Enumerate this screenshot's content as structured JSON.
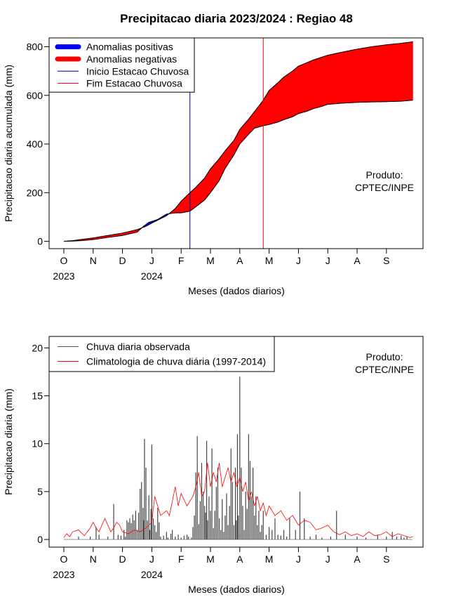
{
  "chart_data": [
    {
      "type": "area",
      "title": "Precipitacao diaria 2023/2024 : Regiao 48",
      "xlabel": "Meses (dados diarios)",
      "ylabel": "Precipitacao diaria acumulada (mm)",
      "x_unit": "month",
      "xlim": [
        "2023-10-01",
        "2024-09-30"
      ],
      "ylim": [
        0,
        830
      ],
      "yticks": [
        0,
        200,
        400,
        600,
        800
      ],
      "x_ticks": [
        "O",
        "N",
        "D",
        "J",
        "F",
        "M",
        "A",
        "M",
        "J",
        "J",
        "A",
        "S"
      ],
      "x_years": [
        {
          "month_index": 0,
          "label": "2023"
        },
        {
          "month_index": 3,
          "label": "2024"
        }
      ],
      "legend": {
        "placement": "top-left",
        "entries": [
          {
            "label": "Anomalias positivas",
            "color": "#0000ff",
            "style": "thick"
          },
          {
            "label": "Anomalias negativas",
            "color": "#ff0000",
            "style": "thick"
          },
          {
            "label": "Inicio Estacao Chuvosa",
            "color": "#00008b",
            "style": "line"
          },
          {
            "label": "Fim Estacao Chuvosa",
            "color": "#ff0000",
            "style": "line"
          }
        ]
      },
      "annotation": [
        "Produto:",
        "CPTEC/INPE"
      ],
      "series": [
        {
          "name": "Climatologia acumulada",
          "x": [
            0,
            0.3,
            0.6,
            1,
            1.5,
            2,
            2.5,
            2.8,
            3,
            3.2,
            3.5,
            3.8,
            4,
            4.3,
            4.5,
            4.8,
            5,
            5.3,
            5.5,
            5.8,
            6,
            6.3,
            6.5,
            6.8,
            7,
            7.3,
            7.5,
            7.8,
            8,
            8.3,
            8.5,
            8.8,
            9,
            9.5,
            10,
            10.5,
            11,
            11.5,
            11.9
          ],
          "values": [
            0,
            3,
            8,
            14,
            24,
            34,
            48,
            62,
            75,
            87,
            105,
            135,
            165,
            200,
            222,
            260,
            298,
            340,
            372,
            415,
            460,
            502,
            533,
            580,
            620,
            652,
            675,
            700,
            720,
            735,
            745,
            757,
            765,
            778,
            790,
            800,
            808,
            814,
            820
          ]
        },
        {
          "name": "Observado acumulado",
          "x": [
            0,
            0.3,
            0.6,
            1,
            1.5,
            2,
            2.5,
            2.7,
            2.9,
            3,
            3.2,
            3.5,
            3.8,
            4,
            4.3,
            4.5,
            4.8,
            5,
            5.3,
            5.5,
            5.8,
            6,
            6.3,
            6.5,
            6.8,
            7,
            7.3,
            7.5,
            7.8,
            8,
            8.3,
            8.5,
            8.8,
            9,
            9.5,
            10,
            10.5,
            11,
            11.5,
            11.9
          ],
          "values": [
            0,
            1,
            3,
            7,
            16,
            24,
            38,
            60,
            78,
            82,
            90,
            112,
            117,
            117,
            124,
            142,
            170,
            200,
            250,
            300,
            355,
            400,
            440,
            465,
            475,
            480,
            490,
            500,
            512,
            525,
            535,
            545,
            555,
            563,
            568,
            571,
            573,
            574,
            576,
            580
          ]
        }
      ],
      "markers": [
        {
          "name": "Inicio Estacao Chuvosa",
          "x": 4.3,
          "color": "#00008b"
        },
        {
          "name": "Fim Estacao Chuvosa",
          "x": 6.8,
          "color": "#ff0000"
        }
      ]
    },
    {
      "type": "bar",
      "xlabel": "Meses (dados diarios)",
      "ylabel": "Precipitacao diaria (mm)",
      "x_unit": "month",
      "xlim": [
        "2023-10-01",
        "2024-09-30"
      ],
      "ylim": [
        0,
        20
      ],
      "yticks": [
        0,
        5,
        10,
        15,
        20
      ],
      "x_ticks": [
        "O",
        "N",
        "D",
        "J",
        "F",
        "M",
        "A",
        "M",
        "J",
        "J",
        "A",
        "S"
      ],
      "x_years": [
        {
          "month_index": 0,
          "label": "2023"
        },
        {
          "month_index": 3,
          "label": "2024"
        }
      ],
      "legend": {
        "placement": "top-left",
        "entries": [
          {
            "label": "Chuva diaria observada",
            "color": "#555555",
            "style": "line"
          },
          {
            "label": "Climatologia de chuva diária (1997-2014)",
            "color": "#ff0000",
            "style": "line"
          }
        ]
      },
      "annotation": [
        "Produto:",
        "CPTEC/INPE"
      ],
      "series": [
        {
          "name": "Chuva diaria observada",
          "x": [
            0.5,
            0.9,
            1.1,
            1.2,
            1.5,
            1.7,
            1.85,
            1.95,
            2.05,
            2.1,
            2.15,
            2.2,
            2.25,
            2.3,
            2.35,
            2.4,
            2.45,
            2.5,
            2.55,
            2.6,
            2.65,
            2.7,
            2.72,
            2.75,
            2.8,
            2.85,
            2.9,
            2.93,
            2.97,
            3.0,
            3.05,
            3.1,
            3.15,
            3.2,
            3.25,
            3.3,
            3.4,
            3.5,
            3.55,
            3.65,
            3.7,
            3.8,
            3.9,
            4.0,
            4.1,
            4.2,
            4.25,
            4.35,
            4.4,
            4.45,
            4.5,
            4.55,
            4.6,
            4.65,
            4.7,
            4.75,
            4.8,
            4.83,
            4.87,
            4.9,
            4.95,
            5.0,
            5.05,
            5.1,
            5.15,
            5.2,
            5.25,
            5.3,
            5.35,
            5.4,
            5.45,
            5.5,
            5.55,
            5.6,
            5.65,
            5.7,
            5.75,
            5.8,
            5.85,
            5.88,
            5.92,
            5.95,
            6.0,
            6.05,
            6.1,
            6.15,
            6.2,
            6.25,
            6.3,
            6.35,
            6.4,
            6.45,
            6.5,
            6.55,
            6.6,
            6.65,
            6.7,
            6.75,
            6.8,
            6.9,
            7.0,
            7.1,
            7.2,
            7.3,
            7.4,
            7.5,
            7.6,
            7.7,
            7.9,
            8.05,
            8.2,
            8.4,
            8.6,
            8.8,
            9.1,
            9.3,
            9.6,
            10.0,
            10.3,
            10.7,
            11.0,
            11.2,
            11.35,
            11.5,
            11.6,
            11.7
          ],
          "values": [
            0.3,
            0.3,
            1.3,
            0.5,
            0.3,
            3.7,
            0.5,
            0.4,
            1.0,
            0.3,
            2.0,
            1.8,
            2.2,
            1.7,
            2.6,
            2.0,
            3.0,
            1.0,
            2.8,
            5.3,
            6.0,
            3.3,
            2.0,
            10.5,
            7.5,
            2.0,
            4.6,
            1.0,
            3.2,
            9.9,
            2.2,
            1.5,
            0.8,
            3.3,
            1.8,
            0.3,
            0.4,
            0.8,
            0.2,
            0.6,
            1.0,
            0.3,
            0.5,
            0.2,
            0.4,
            0.5,
            0.3,
            0.2,
            1.3,
            2.5,
            7.0,
            10.8,
            1.6,
            4.0,
            8.0,
            5.0,
            3.5,
            2.8,
            10.3,
            2.0,
            4.5,
            3.0,
            9.5,
            1.2,
            3.0,
            5.5,
            7.5,
            2.2,
            1.0,
            4.2,
            0.8,
            2.5,
            4.8,
            1.5,
            3.5,
            9.5,
            6.0,
            1.5,
            7.5,
            2.0,
            11.0,
            2.5,
            17.0,
            7.5,
            3.5,
            1.0,
            5.0,
            3.2,
            11.0,
            8.2,
            4.5,
            7.5,
            2.5,
            4.5,
            1.5,
            3.0,
            0.8,
            1.5,
            3.0,
            0.5,
            1.3,
            1.0,
            2.2,
            0.5,
            0.4,
            1.0,
            0.3,
            2.2,
            1.0,
            5.0,
            2.2,
            0.3,
            0.5,
            0.2,
            0.3,
            3.0,
            0.5,
            0.3,
            0.2,
            0.5,
            0.3,
            0.8,
            0.3,
            0.4,
            0.2,
            0.3
          ]
        },
        {
          "name": "Climatologia de chuva diária (1997-2014)",
          "x": [
            0,
            0.1,
            0.2,
            0.3,
            0.5,
            0.6,
            0.7,
            0.9,
            1.0,
            1.1,
            1.2,
            1.4,
            1.6,
            1.7,
            1.8,
            1.9,
            2.0,
            2.2,
            2.4,
            2.6,
            2.8,
            3.0,
            3.1,
            3.3,
            3.5,
            3.6,
            3.7,
            3.8,
            3.9,
            4.0,
            4.2,
            4.4,
            4.5,
            4.6,
            4.7,
            4.8,
            4.9,
            5.0,
            5.1,
            5.2,
            5.3,
            5.4,
            5.5,
            5.6,
            5.7,
            5.8,
            5.9,
            6.0,
            6.1,
            6.2,
            6.3,
            6.4,
            6.5,
            6.6,
            6.7,
            6.8,
            6.9,
            7.0,
            7.2,
            7.4,
            7.6,
            7.8,
            8.0,
            8.2,
            8.4,
            8.6,
            8.8,
            9.0,
            9.2,
            9.4,
            9.6,
            9.8,
            10.0,
            10.2,
            10.4,
            10.6,
            10.8,
            11.0,
            11.2,
            11.4,
            11.6,
            11.8,
            11.9
          ],
          "values": [
            0.2,
            0.6,
            0.3,
            0.8,
            1.0,
            0.7,
            0.4,
            1.2,
            1.8,
            1.2,
            0.8,
            2.2,
            0.8,
            1.2,
            1.8,
            1.5,
            0.8,
            0.6,
            1.0,
            0.8,
            1.2,
            1.8,
            4.5,
            2.5,
            3.0,
            2.5,
            4.0,
            5.5,
            3.5,
            4.8,
            3.5,
            4.5,
            5.5,
            7.0,
            4.5,
            5.0,
            8.0,
            5.5,
            7.0,
            6.0,
            8.0,
            5.5,
            6.5,
            7.5,
            6.0,
            7.0,
            5.5,
            6.5,
            5.0,
            6.0,
            4.0,
            5.0,
            3.5,
            4.5,
            3.0,
            3.8,
            2.5,
            3.5,
            2.5,
            3.0,
            2.0,
            2.5,
            1.5,
            2.0,
            1.8,
            1.0,
            1.2,
            1.5,
            0.8,
            0.5,
            0.8,
            0.4,
            0.6,
            0.3,
            0.8,
            0.4,
            0.5,
            0.8,
            0.3,
            0.6,
            0.4,
            0.2,
            0.3
          ]
        }
      ]
    }
  ]
}
